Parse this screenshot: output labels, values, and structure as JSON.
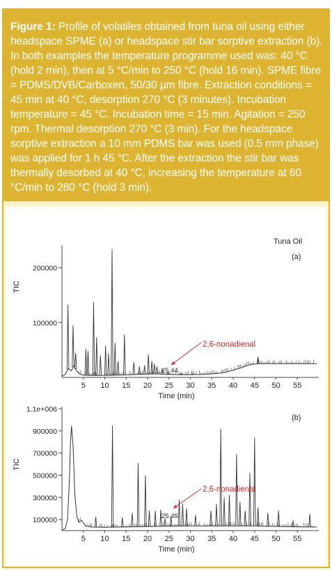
{
  "caption": {
    "label": "Figure 1:",
    "text": "Profile of volatiles obtained from tuna oil using either headspace SPME (a) or  headspace stir bar sorptive extraction (b). In both examples the temperature programme used was: 40 °C (hold 2 min), then at 5 °C/min to 250 °C (hold 16 min). SPME fibre = PDMS/DVB/Carboxen, 50/30 µm fibre. Extraction conditions = 45 min at 40 °C, desorption 270 °C (3 minutes). Incubation temperature = 45 °C. Incubation time = 15 min. Agitation = 250 rpm. Thermal desorption 270 °C (3 min). For the headspace sorptive extraction a 10 mm PDMS bar was used (0.5 mm phase) was applied for 1 h 45 °C. After the extraction the stir bar was thermally desorbed at 40 °C, increasing the temperature at 60 °C/min to 280 °C (hold 3 min)."
  },
  "colors": {
    "caption_background": "#ddb432",
    "figure_background": "#fbf3cc",
    "trace": "#333333",
    "annotation": "#d42a2a"
  },
  "chart_data": [
    {
      "type": "line",
      "panel_label": "(a)",
      "sample_label": "Tuna Oil",
      "xlabel": "Time (min)",
      "ylabel": "TIC",
      "xlim": [
        0,
        60
      ],
      "ylim": [
        0,
        235000
      ],
      "x_ticks": [
        5,
        10,
        15,
        20,
        25,
        30,
        35,
        40,
        45,
        50,
        55
      ],
      "y_ticks": [
        100000,
        200000
      ],
      "y_tick_labels": [
        "100000",
        "200000"
      ],
      "baseline": [
        [
          0,
          2000
        ],
        [
          0.8,
          6000
        ],
        [
          1.5,
          16000
        ],
        [
          2.2,
          12000
        ],
        [
          2.8,
          22000
        ],
        [
          3.4,
          12000
        ],
        [
          4.2,
          6000
        ],
        [
          5,
          4000
        ],
        [
          8,
          3500
        ],
        [
          12,
          4000
        ],
        [
          16,
          5000
        ],
        [
          20,
          6000
        ],
        [
          22,
          6500
        ],
        [
          25,
          5500
        ],
        [
          28,
          5000
        ],
        [
          32,
          5200
        ],
        [
          34,
          6000
        ],
        [
          36,
          7000
        ],
        [
          38,
          9000
        ],
        [
          40,
          13000
        ],
        [
          42,
          18000
        ],
        [
          43.5,
          22000
        ],
        [
          44.5,
          24000
        ],
        [
          46,
          25000
        ],
        [
          50,
          25000
        ],
        [
          55,
          25000
        ],
        [
          57,
          25000
        ],
        [
          59.5,
          25000
        ]
      ],
      "peaks": [
        [
          1.4,
          133000
        ],
        [
          2.6,
          95000
        ],
        [
          3.2,
          45000
        ],
        [
          5.6,
          52000
        ],
        [
          6.1,
          48000
        ],
        [
          7.4,
          137000
        ],
        [
          8.1,
          73000
        ],
        [
          9.0,
          40000
        ],
        [
          10.2,
          58000
        ],
        [
          10.9,
          44000
        ],
        [
          11.7,
          234000
        ],
        [
          12.4,
          63000
        ],
        [
          13.1,
          30000
        ],
        [
          14.6,
          78000
        ],
        [
          16.8,
          28000
        ],
        [
          18.1,
          20000
        ],
        [
          19.3,
          22000
        ],
        [
          20.2,
          42000
        ],
        [
          21.0,
          30000
        ],
        [
          21.6,
          25000
        ],
        [
          22.2,
          20000
        ],
        [
          23.4,
          16000
        ],
        [
          24.8,
          10000
        ],
        [
          27.8,
          8000
        ],
        [
          30.4,
          7000
        ],
        [
          45.8,
          38000
        ]
      ],
      "annotation": {
        "compound": "2,6-nonadienal",
        "retention_time_label": "25.44",
        "retention_time": 25.44
      }
    },
    {
      "type": "line",
      "panel_label": "(b)",
      "xlabel": "Time (min)",
      "ylabel": "TIC",
      "xlim": [
        0,
        60
      ],
      "ylim": [
        0,
        1100000
      ],
      "x_ticks": [
        5,
        10,
        15,
        20,
        25,
        30,
        35,
        40,
        45,
        50,
        55
      ],
      "y_ticks": [
        100000,
        300000,
        500000,
        700000,
        900000,
        1100000
      ],
      "y_tick_labels": [
        "100000",
        "300000",
        "500000",
        "700000",
        "900000",
        "1.1e+006"
      ],
      "baseline": [
        [
          0,
          5000
        ],
        [
          0.8,
          20000
        ],
        [
          1.3,
          100000
        ],
        [
          1.7,
          420000
        ],
        [
          2.0,
          800000
        ],
        [
          2.25,
          945000
        ],
        [
          2.6,
          760000
        ],
        [
          3.0,
          330000
        ],
        [
          3.5,
          120000
        ],
        [
          4.0,
          75000
        ],
        [
          4.6,
          92000
        ],
        [
          5.5,
          42000
        ],
        [
          7,
          32000
        ],
        [
          10,
          30000
        ],
        [
          15,
          33000
        ],
        [
          20,
          37000
        ],
        [
          25,
          40000
        ],
        [
          30,
          42000
        ],
        [
          35,
          43000
        ],
        [
          40,
          43000
        ],
        [
          45,
          42000
        ],
        [
          50,
          38000
        ],
        [
          55,
          34000
        ],
        [
          59.5,
          32000
        ]
      ],
      "peaks": [
        [
          7.9,
          125000
        ],
        [
          11.8,
          950000
        ],
        [
          14.1,
          120000
        ],
        [
          16.4,
          160000
        ],
        [
          17.8,
          610000
        ],
        [
          19.5,
          500000
        ],
        [
          20.4,
          180000
        ],
        [
          21.8,
          180000
        ],
        [
          23.1,
          190000
        ],
        [
          24.1,
          110000
        ],
        [
          25.5,
          130000
        ],
        [
          27.4,
          280000
        ],
        [
          28.2,
          240000
        ],
        [
          29.1,
          200000
        ],
        [
          31.2,
          140000
        ],
        [
          34.8,
          180000
        ],
        [
          36.1,
          240000
        ],
        [
          37.1,
          920000
        ],
        [
          37.9,
          300000
        ],
        [
          39.1,
          320000
        ],
        [
          40.8,
          690000
        ],
        [
          41.6,
          260000
        ],
        [
          42.8,
          180000
        ],
        [
          43.9,
          520000
        ],
        [
          45.0,
          840000
        ],
        [
          45.8,
          210000
        ],
        [
          48.1,
          160000
        ],
        [
          50.6,
          180000
        ],
        [
          54.0,
          90000
        ],
        [
          57.9,
          150000
        ]
      ],
      "annotation": {
        "compound": "2,6-nonadienal",
        "retention_time_label": "25.45",
        "retention_time": 25.45
      }
    }
  ]
}
